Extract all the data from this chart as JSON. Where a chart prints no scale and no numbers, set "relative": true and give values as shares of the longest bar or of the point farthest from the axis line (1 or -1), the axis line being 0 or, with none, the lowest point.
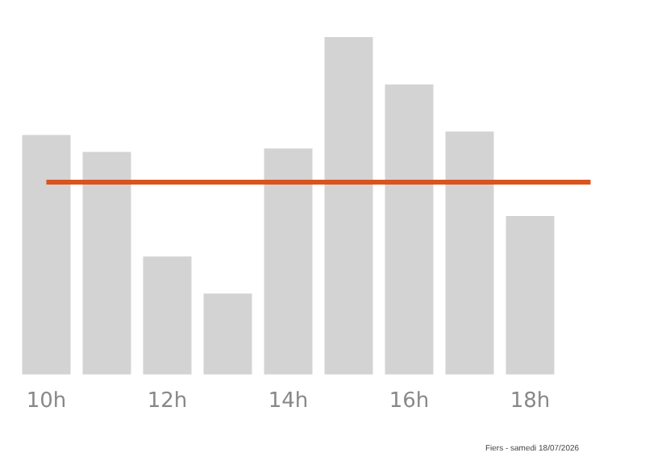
{
  "chart_data": {
    "type": "bar",
    "relative": true,
    "categories": [
      "10h",
      null,
      "12h",
      null,
      "14h",
      null,
      "16h",
      null,
      "18h",
      null
    ],
    "values": [
      0.71,
      0.66,
      0.35,
      0.24,
      0.67,
      1,
      0.86,
      0.72,
      0.47,
      0
    ],
    "color": "#d3d3d3",
    "ref_lines": [
      {
        "axis": "y",
        "value": 0.57,
        "color": "#d9541e"
      }
    ],
    "annotations": [
      "Fiers - samedi 18/07/2026"
    ],
    "grid": false,
    "legend": false
  }
}
